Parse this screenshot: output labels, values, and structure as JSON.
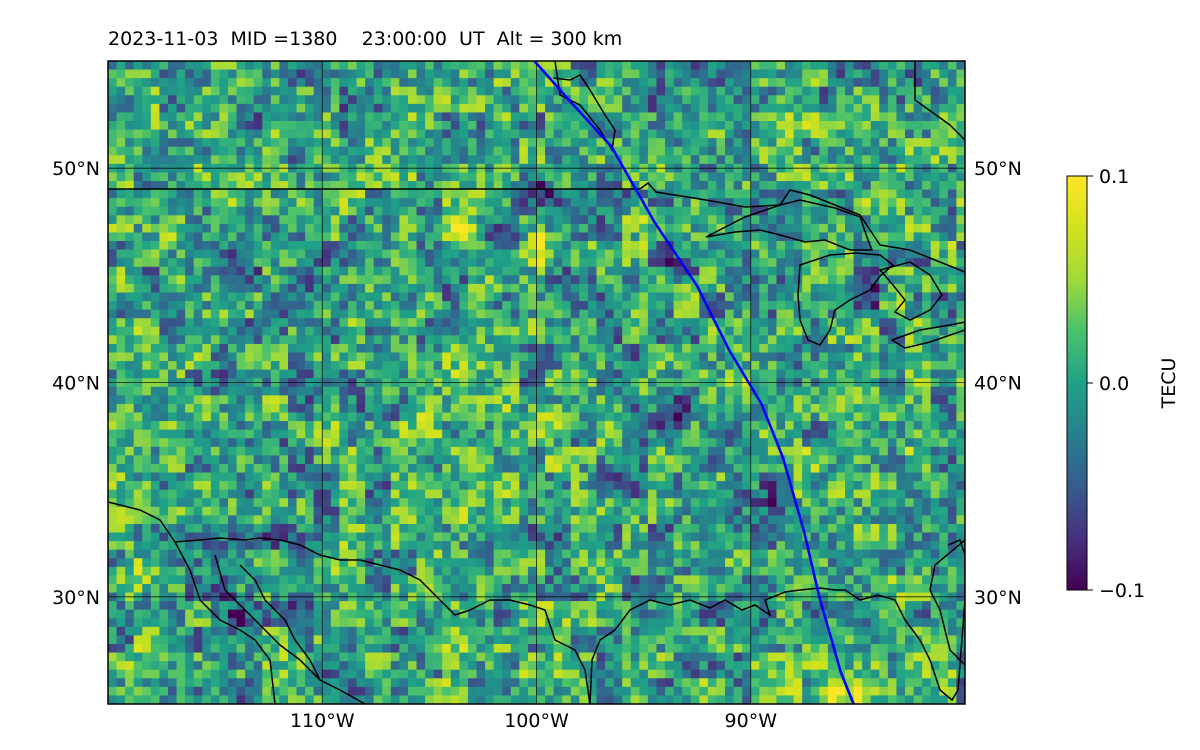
{
  "header": {
    "date": "2023-11-03",
    "mid_text": "MID =1380",
    "time_text": "23:00:00  UT",
    "alt_text": "Alt = 300 km"
  },
  "chart_data": {
    "type": "heatmap",
    "title": "2023-11-03  MID =1380    23:00:00  UT  Alt = 300 km",
    "projection": "map",
    "lon_range": [
      -120,
      -80
    ],
    "lat_range": [
      25,
      55
    ],
    "x_ticks": [
      -110,
      -100,
      -90
    ],
    "x_tick_labels": [
      "110°W",
      "100°W",
      "90°W"
    ],
    "y_ticks": [
      30,
      40,
      50
    ],
    "y_tick_labels": [
      "30°N",
      "40°N",
      "50°N"
    ],
    "grid": true,
    "colorbar": {
      "label": "TECU",
      "range": [
        -0.1,
        0.1
      ],
      "ticks": [
        0.1,
        0.0,
        -0.1
      ],
      "tick_labels": [
        "0.1",
        "0.0",
        "−0.1"
      ],
      "colormap": "viridis",
      "position": "right"
    },
    "track": {
      "color": "#0000ff",
      "lon": [
        -100.1,
        -98.5,
        -96.5,
        -94.5,
        -92.5,
        -91.0,
        -89.5,
        -88.5,
        -87.5,
        -86.8,
        -85.8,
        -85.2
      ],
      "lat": [
        55.0,
        53.2,
        51.0,
        47.5,
        44.5,
        41.5,
        39.0,
        36.5,
        33.0,
        30.0,
        26.5,
        25.0
      ]
    },
    "features": [
      {
        "lon": -103.3,
        "lat": 47.0,
        "value": 0.1
      },
      {
        "lon": -99.5,
        "lat": 46.5,
        "value": 0.1
      },
      {
        "lon": -95.3,
        "lat": 47.5,
        "value": 0.1
      },
      {
        "lon": -93.0,
        "lat": 44.4,
        "value": 0.1
      },
      {
        "lon": -99.3,
        "lat": 38.4,
        "value": 0.1
      },
      {
        "lon": -118.6,
        "lat": 30.8,
        "value": 0.1
      },
      {
        "lon": -86.0,
        "lat": 25.3,
        "value": 0.1
      },
      {
        "lon": -100.0,
        "lat": 49.0,
        "value": -0.1
      },
      {
        "lon": -101.5,
        "lat": 46.7,
        "value": -0.1
      },
      {
        "lon": -93.5,
        "lat": 45.5,
        "value": -0.1
      },
      {
        "lon": -84.5,
        "lat": 44.5,
        "value": -0.1
      },
      {
        "lon": -94.0,
        "lat": 38.5,
        "value": -0.1
      },
      {
        "lon": -89.0,
        "lat": 35.0,
        "value": -0.1
      },
      {
        "lon": -114.0,
        "lat": 29.0,
        "value": -0.1
      },
      {
        "lon": -111.0,
        "lat": 29.5,
        "value": -0.1
      },
      {
        "lon": -97.0,
        "lat": 35.5,
        "value": -0.1
      }
    ]
  }
}
